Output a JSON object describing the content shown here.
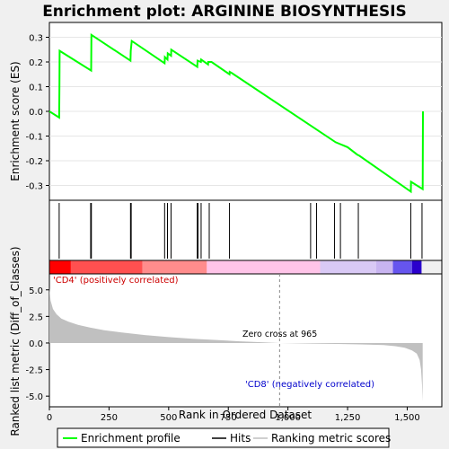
{
  "chart_data": {
    "type": "line",
    "title": "Enrichment plot: ARGININE BIOSYNTHESIS",
    "xlabel": "Rank in Ordered Dataset",
    "x_ticks": [
      "0",
      "250",
      "500",
      "750",
      "1,000",
      "1,250",
      "1,500"
    ],
    "xlim": [
      0,
      1645
    ],
    "es_panel": {
      "ylabel": "Enrichment score (ES)",
      "ylim": [
        -0.36,
        0.36
      ],
      "y_ticks": [
        "0.3",
        "0.2",
        "0.1",
        "0.0",
        "-0.1",
        "-0.2",
        "-0.3"
      ],
      "y_tick_values": [
        0.3,
        0.2,
        0.1,
        0.0,
        -0.1,
        -0.2,
        -0.3
      ],
      "grid": true,
      "series": [
        {
          "name": "Enrichment profile",
          "color": "#00ff00",
          "x": [
            0,
            41,
            42,
            43,
            175,
            176,
            340,
            341,
            345,
            483,
            484,
            495,
            496,
            510,
            511,
            620,
            621,
            635,
            636,
            665,
            666,
            680,
            755,
            756,
            765,
            1200,
            1250,
            1290,
            1300,
            1515,
            1516,
            1565,
            1566
          ],
          "y": [
            0.0,
            -0.025,
            0.11,
            0.245,
            0.165,
            0.31,
            0.205,
            0.245,
            0.285,
            0.195,
            0.22,
            0.21,
            0.235,
            0.225,
            0.25,
            0.18,
            0.205,
            0.2,
            0.21,
            0.19,
            0.2,
            0.2,
            0.15,
            0.16,
            0.155,
            -0.125,
            -0.145,
            -0.175,
            -0.18,
            -0.325,
            -0.285,
            -0.315,
            0.0
          ]
        }
      ]
    },
    "hits": {
      "name": "Hits",
      "color": "#000000",
      "x": [
        41,
        173,
        176,
        340,
        343,
        483,
        495,
        510,
        620,
        623,
        636,
        670,
        755,
        1095,
        1120,
        1195,
        1220,
        1295,
        1515,
        1562
      ]
    },
    "rank_bar": {
      "colors": [
        "#ff0000",
        "#ff5050",
        "#ff8c8c",
        "#ffc4e8",
        "#d9c9f5",
        "#c8b4f0",
        "#6655ee",
        "#2a00cc"
      ],
      "breaks": [
        0,
        90,
        390,
        660,
        1135,
        1370,
        1440,
        1520,
        1560
      ]
    },
    "metric_panel": {
      "ylabel": "Ranked list metric (Diff_of_Classes)",
      "ylim": [
        -6,
        6.5
      ],
      "y_ticks": [
        "5.0",
        "2.5",
        "0.0",
        "-2.5",
        "-5.0"
      ],
      "y_tick_values": [
        5.0,
        2.5,
        0.0,
        -2.5,
        -5.0
      ],
      "series": [
        {
          "name": "Ranking metric scores",
          "color": "#c0c0c0",
          "x": [
            0,
            5,
            15,
            30,
            50,
            80,
            120,
            170,
            230,
            300,
            400,
            500,
            600,
            700,
            800,
            900,
            965,
            1100,
            1200,
            1300,
            1400,
            1450,
            1490,
            1520,
            1540,
            1552,
            1558,
            1562,
            1565
          ],
          "y": [
            5.2,
            4.0,
            3.2,
            2.7,
            2.3,
            2.0,
            1.7,
            1.45,
            1.2,
            1.0,
            0.75,
            0.55,
            0.4,
            0.28,
            0.16,
            0.06,
            0.0,
            -0.05,
            -0.09,
            -0.13,
            -0.2,
            -0.3,
            -0.45,
            -0.7,
            -1.0,
            -1.6,
            -2.5,
            -4.0,
            -5.5
          ]
        }
      ],
      "zero_cross_rank": 965,
      "zero_cross_label": "Zero cross at 965",
      "pos_label": "'CD4' (positively correlated)",
      "neg_label": "'CD8' (negatively correlated)"
    },
    "legend": {
      "placement": "bottom",
      "items": [
        "Enrichment profile",
        "Hits",
        "Ranking metric scores"
      ]
    }
  }
}
